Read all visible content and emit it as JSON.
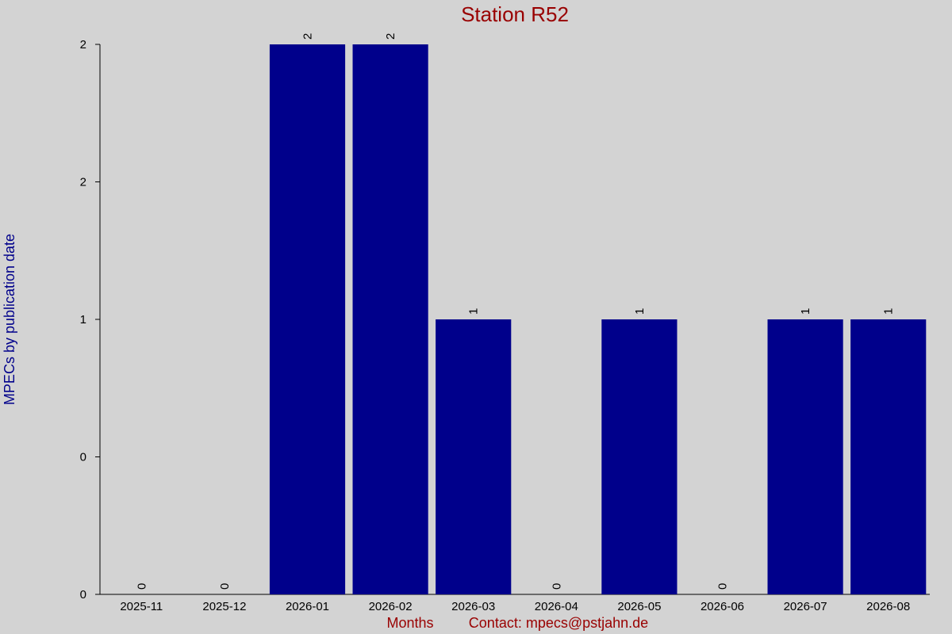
{
  "chart_data": {
    "type": "bar",
    "title": "Station R52",
    "y_label": "MPECs by publication date",
    "x_label": "Months",
    "note": "Contact: mpecs@pstjahn.de",
    "categories": [
      "2025-11",
      "2025-12",
      "2026-01",
      "2026-02",
      "2026-03",
      "2026-04",
      "2026-05",
      "2026-06",
      "2026-07",
      "2026-08"
    ],
    "values": [
      0,
      0,
      2,
      2,
      1,
      0,
      1,
      0,
      1,
      1
    ],
    "color": "#00008b",
    "ylim": [
      0,
      2
    ],
    "yticks": [
      0,
      {
        "value": 0.5,
        "label": "0"
      },
      1,
      {
        "value": 1.5,
        "label": "2"
      },
      2
    ],
    "grid": false
  }
}
